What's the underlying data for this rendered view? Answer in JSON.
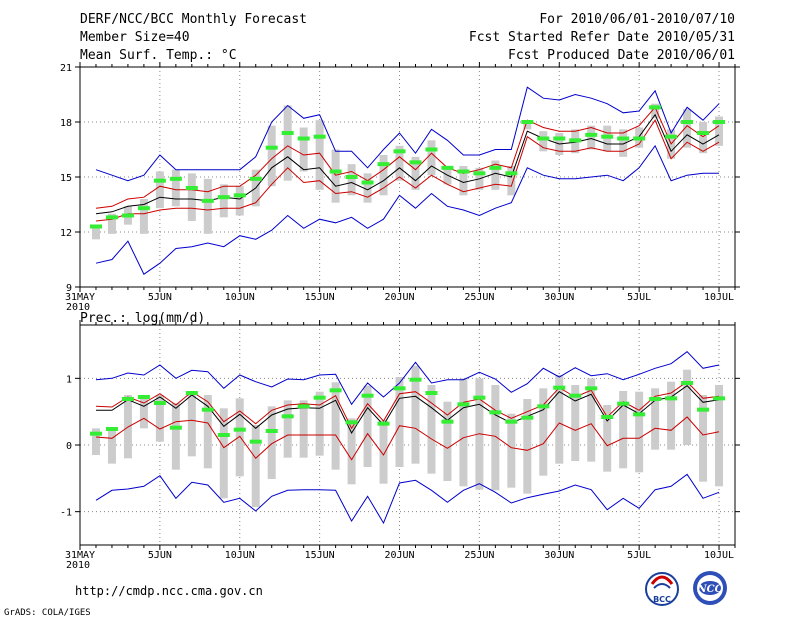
{
  "header": {
    "title": "DERF/NCC/BCC Monthly Forecast",
    "member_size": "Member Size=40",
    "variable": "Mean Surf. Temp.: °C",
    "period": "For 2010/06/01-2010/07/10",
    "start_date": "Fcst Started Refer Date 2010/05/31",
    "produced_date": "Fcst Produced Date 2010/06/01"
  },
  "footer": {
    "url": "http://cmdp.ncc.cma.gov.cn",
    "grads": "GrADS: COLA/IGES",
    "logo_left": "BCC",
    "logo_right": "NCC"
  },
  "colors": {
    "blue": "#0000cc",
    "red": "#cc0000",
    "black": "#000000",
    "box": "#cccccc",
    "median": "#33ee33"
  },
  "chart_data": [
    {
      "type": "box-ensemble",
      "title": "Mean Surf. Temp.: °C",
      "x_tick_labels": [
        "31MAY",
        "5JUN",
        "10JUN",
        "15JUN",
        "20JUN",
        "25JUN",
        "30JUN",
        "5JUL",
        "10JUL"
      ],
      "x_tick_days": [
        0,
        5,
        10,
        15,
        20,
        25,
        30,
        35,
        40
      ],
      "x_origin_year": "2010",
      "ylim": [
        9,
        21
      ],
      "y_ticks": [
        9,
        12,
        15,
        18,
        21
      ],
      "y_tick_labels": [
        "9",
        "12",
        "15",
        "18",
        "21"
      ],
      "days": [
        1,
        2,
        3,
        4,
        5,
        6,
        7,
        8,
        9,
        10,
        11,
        12,
        13,
        14,
        15,
        16,
        17,
        18,
        19,
        20,
        21,
        22,
        23,
        24,
        25,
        26,
        27,
        28,
        29,
        30,
        31,
        32,
        33,
        34,
        35,
        36,
        37,
        38,
        39,
        40
      ],
      "max": [
        15.4,
        15.1,
        14.8,
        15.1,
        16.2,
        15.4,
        15.4,
        15.4,
        15.4,
        15.4,
        16.1,
        18.0,
        18.9,
        18.2,
        18.4,
        16.4,
        16.4,
        15.5,
        16.5,
        17.4,
        16.3,
        17.6,
        17.0,
        16.2,
        16.2,
        16.5,
        16.5,
        19.9,
        19.3,
        19.2,
        19.5,
        19.3,
        19.0,
        18.5,
        18.6,
        19.7,
        17.4,
        18.8,
        18.1,
        19.0
      ],
      "upper": [
        13.3,
        13.4,
        13.8,
        13.9,
        14.5,
        14.3,
        14.3,
        14.2,
        14.5,
        14.5,
        15.1,
        16.0,
        16.7,
        16.2,
        16.3,
        15.1,
        15.3,
        14.8,
        15.4,
        16.1,
        15.4,
        16.3,
        15.5,
        15.2,
        15.4,
        15.7,
        15.5,
        18.1,
        17.7,
        17.5,
        17.5,
        17.7,
        17.4,
        17.4,
        17.8,
        18.8,
        16.8,
        17.8,
        17.2,
        17.8
      ],
      "mean": [
        13.0,
        13.1,
        13.4,
        13.5,
        13.9,
        13.8,
        13.8,
        13.7,
        13.9,
        13.8,
        14.4,
        15.5,
        16.1,
        15.4,
        15.5,
        14.5,
        14.7,
        14.3,
        14.8,
        15.5,
        14.8,
        15.6,
        15.1,
        14.7,
        14.9,
        15.2,
        15.0,
        17.5,
        17.1,
        16.8,
        16.9,
        17.1,
        16.8,
        16.8,
        17.2,
        18.4,
        16.4,
        17.3,
        16.8,
        17.3
      ],
      "lower": [
        12.6,
        12.7,
        13.0,
        13.0,
        13.2,
        13.3,
        13.3,
        13.2,
        13.3,
        13.3,
        13.6,
        14.6,
        15.5,
        14.7,
        14.8,
        14.1,
        14.2,
        13.9,
        14.4,
        15.0,
        14.4,
        15.1,
        14.6,
        14.2,
        14.4,
        14.6,
        14.5,
        17.2,
        16.6,
        16.4,
        16.4,
        16.6,
        16.4,
        16.4,
        16.8,
        18.1,
        16.0,
        16.9,
        16.4,
        16.9
      ],
      "min": [
        10.3,
        10.5,
        11.5,
        9.7,
        10.3,
        11.1,
        11.2,
        11.4,
        11.2,
        11.8,
        11.6,
        12.1,
        12.9,
        12.2,
        12.7,
        12.5,
        12.8,
        12.2,
        12.7,
        14.0,
        13.3,
        14.1,
        13.4,
        13.2,
        12.9,
        13.3,
        13.6,
        15.5,
        15.1,
        14.9,
        14.9,
        15.0,
        15.1,
        14.8,
        15.5,
        16.7,
        14.8,
        15.1,
        15.2,
        15.2
      ],
      "box_high": [
        12.3,
        13.0,
        13.4,
        13.8,
        15.3,
        15.4,
        15.2,
        14.9,
        14.6,
        14.5,
        15.4,
        17.8,
        18.9,
        17.7,
        18.1,
        16.5,
        15.7,
        15.2,
        16.2,
        16.7,
        16.1,
        17.0,
        15.6,
        15.6,
        15.5,
        15.9,
        15.6,
        18.1,
        17.5,
        17.4,
        17.6,
        17.8,
        17.8,
        17.6,
        17.7,
        19.0,
        17.6,
        18.7,
        18.0,
        18.3
      ],
      "box_low": [
        11.6,
        11.9,
        12.4,
        11.9,
        13.3,
        13.4,
        12.6,
        11.9,
        12.8,
        12.9,
        13.4,
        14.5,
        14.8,
        15.3,
        14.3,
        13.6,
        14.0,
        13.6,
        14.0,
        14.8,
        14.3,
        15.1,
        14.6,
        14.0,
        14.3,
        14.3,
        14.0,
        17.6,
        16.4,
        16.2,
        16.3,
        16.5,
        16.4,
        16.1,
        16.6,
        18.2,
        16.0,
        16.6,
        16.3,
        16.7
      ],
      "median": [
        12.3,
        12.8,
        12.9,
        13.3,
        14.8,
        14.9,
        14.4,
        13.7,
        13.9,
        14.0,
        14.9,
        16.6,
        17.4,
        17.1,
        17.2,
        15.3,
        15.0,
        14.7,
        15.7,
        16.4,
        15.8,
        16.5,
        15.5,
        15.3,
        15.2,
        15.5,
        15.2,
        18.0,
        17.1,
        17.1,
        17.0,
        17.3,
        17.2,
        17.1,
        17.1,
        18.8,
        17.2,
        18.0,
        17.4,
        18.0
      ]
    },
    {
      "type": "box-ensemble",
      "title": "Prec.: log(mm/d)",
      "x_tick_labels": [
        "31MAY",
        "5JUN",
        "10JUN",
        "15JUN",
        "20JUN",
        "25JUN",
        "30JUN",
        "5JUL",
        "10JUL"
      ],
      "x_tick_days": [
        0,
        5,
        10,
        15,
        20,
        25,
        30,
        35,
        40
      ],
      "x_origin_year": "2010",
      "ylim": [
        -1.5,
        1.8
      ],
      "y_ticks": [
        -1,
        0,
        1
      ],
      "y_tick_labels": [
        "-1",
        "0",
        "1"
      ],
      "days": [
        1,
        2,
        3,
        4,
        5,
        6,
        7,
        8,
        9,
        10,
        11,
        12,
        13,
        14,
        15,
        16,
        17,
        18,
        19,
        20,
        21,
        22,
        23,
        24,
        25,
        26,
        27,
        28,
        29,
        30,
        31,
        32,
        33,
        34,
        35,
        36,
        37,
        38,
        39,
        40
      ],
      "max": [
        0.98,
        1.0,
        1.08,
        1.05,
        1.2,
        1.0,
        1.12,
        1.1,
        0.85,
        1.05,
        0.95,
        0.87,
        0.99,
        0.98,
        1.05,
        1.06,
        0.61,
        0.93,
        0.72,
        0.93,
        1.24,
        0.93,
        0.98,
        0.98,
        1.09,
        0.99,
        0.79,
        0.92,
        1.15,
        1.02,
        1.16,
        1.04,
        1.07,
        0.98,
        1.06,
        1.15,
        1.22,
        1.4,
        1.15,
        1.2
      ],
      "upper": [
        0.58,
        0.57,
        0.72,
        0.63,
        0.77,
        0.6,
        0.8,
        0.65,
        0.35,
        0.51,
        0.32,
        0.52,
        0.6,
        0.62,
        0.6,
        0.74,
        0.25,
        0.62,
        0.36,
        0.77,
        0.8,
        0.63,
        0.45,
        0.64,
        0.69,
        0.52,
        0.4,
        0.5,
        0.6,
        0.86,
        0.72,
        0.82,
        0.42,
        0.65,
        0.52,
        0.73,
        0.78,
        0.95,
        0.7,
        0.73
      ],
      "mean": [
        0.52,
        0.52,
        0.68,
        0.58,
        0.72,
        0.55,
        0.75,
        0.58,
        0.28,
        0.46,
        0.25,
        0.45,
        0.54,
        0.56,
        0.55,
        0.67,
        0.18,
        0.56,
        0.3,
        0.7,
        0.73,
        0.56,
        0.37,
        0.56,
        0.61,
        0.45,
        0.33,
        0.43,
        0.53,
        0.8,
        0.66,
        0.76,
        0.36,
        0.6,
        0.47,
        0.67,
        0.72,
        0.89,
        0.64,
        0.68
      ],
      "lower": [
        0.12,
        0.1,
        0.27,
        0.4,
        0.24,
        0.35,
        0.37,
        0.33,
        -0.04,
        0.13,
        -0.2,
        0.02,
        0.15,
        0.15,
        0.15,
        0.15,
        -0.22,
        0.17,
        -0.15,
        0.29,
        0.25,
        0.09,
        -0.05,
        0.11,
        0.17,
        0.13,
        -0.04,
        -0.08,
        0.02,
        0.33,
        0.22,
        0.32,
        -0.01,
        0.1,
        0.1,
        0.25,
        0.22,
        0.42,
        0.15,
        0.2
      ],
      "min": [
        -0.83,
        -0.68,
        -0.66,
        -0.62,
        -0.46,
        -0.8,
        -0.56,
        -0.6,
        -0.86,
        -0.8,
        -0.99,
        -0.77,
        -0.68,
        -0.67,
        -0.67,
        -0.68,
        -1.14,
        -0.77,
        -1.17,
        -0.57,
        -0.53,
        -0.68,
        -0.86,
        -0.68,
        -0.58,
        -0.71,
        -0.87,
        -0.79,
        -0.74,
        -0.69,
        -0.6,
        -0.67,
        -0.97,
        -0.8,
        -0.95,
        -0.67,
        -0.62,
        -0.44,
        -0.8,
        -0.71
      ],
      "box_high": [
        0.25,
        0.25,
        0.75,
        0.7,
        0.75,
        0.63,
        0.75,
        0.75,
        0.55,
        0.7,
        0.3,
        0.58,
        0.67,
        0.67,
        0.8,
        0.94,
        0.4,
        0.89,
        0.37,
        1.02,
        1.19,
        0.9,
        0.65,
        1.0,
        1.0,
        0.9,
        0.47,
        0.69,
        0.85,
        1.05,
        0.9,
        1.0,
        0.6,
        0.81,
        0.8,
        0.85,
        0.95,
        1.13,
        0.75,
        0.9
      ],
      "box_low": [
        -0.15,
        -0.28,
        -0.2,
        0.25,
        0.05,
        -0.37,
        -0.17,
        -0.35,
        -0.8,
        -0.47,
        -0.93,
        -0.51,
        -0.19,
        -0.19,
        -0.16,
        -0.37,
        -0.59,
        -0.33,
        -0.58,
        -0.33,
        -0.28,
        -0.43,
        -0.54,
        -0.62,
        -0.67,
        -0.68,
        -0.64,
        -0.73,
        -0.46,
        -0.28,
        -0.24,
        -0.25,
        -0.4,
        -0.35,
        -0.41,
        -0.07,
        -0.07,
        0.0,
        -0.55,
        -0.62
      ],
      "median": [
        0.17,
        0.24,
        0.69,
        0.72,
        0.63,
        0.26,
        0.78,
        0.53,
        0.15,
        0.23,
        0.05,
        0.21,
        0.43,
        0.58,
        0.71,
        0.82,
        0.34,
        0.74,
        0.32,
        0.85,
        0.98,
        0.78,
        0.35,
        0.61,
        0.71,
        0.49,
        0.35,
        0.41,
        0.58,
        0.86,
        0.74,
        0.85,
        0.42,
        0.62,
        0.46,
        0.69,
        0.7,
        0.93,
        0.53,
        0.7
      ]
    }
  ]
}
